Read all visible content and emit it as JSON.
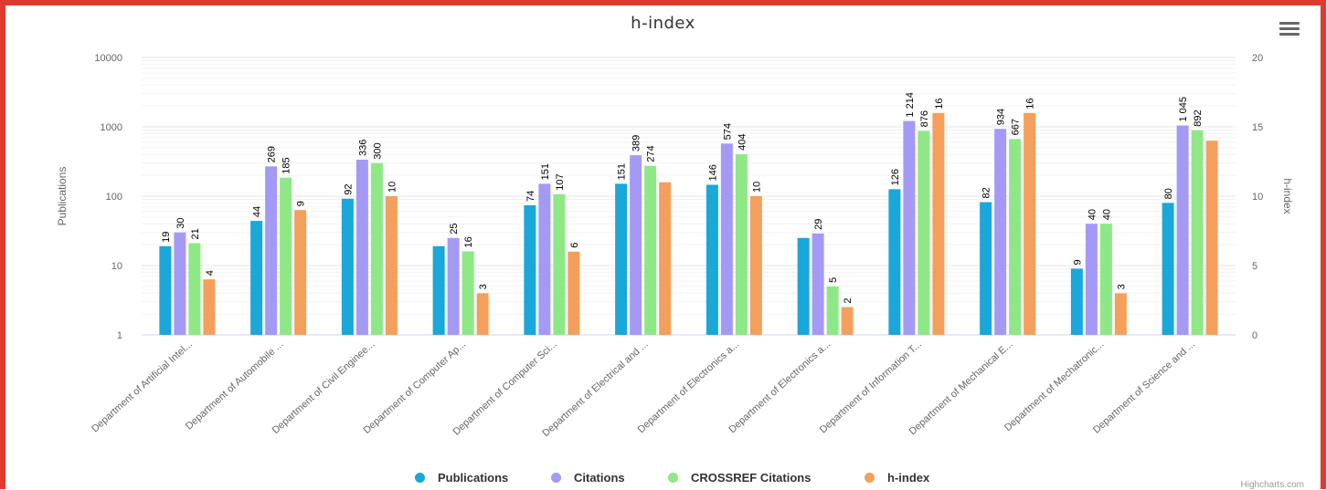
{
  "chart_data": {
    "type": "bar",
    "title": "h-index",
    "ylabel": "Publications",
    "ylabel_right": "h-index",
    "y_scale": "log",
    "ylim": [
      1,
      10000
    ],
    "y_ticks": [
      "1",
      "10",
      "100",
      "1000",
      "10000"
    ],
    "ylim_right": [
      0,
      20
    ],
    "y_ticks_right": [
      "0",
      "5",
      "10",
      "15",
      "20"
    ],
    "grid": true,
    "legend_position": "bottom",
    "categories": [
      "Department of Artificial Intel...",
      "Department of Automobile ...",
      "Department of Civil Enginee...",
      "Department of Computer Ap...",
      "Department of Computer Sci...",
      "Department of Electrical and ...",
      "Department of Electronics a...",
      "Department of Electronics a...",
      "Department of Information T...",
      "Department of Mechanical E...",
      "Department of Mechatronic...",
      "Department of Science and ..."
    ],
    "series": [
      {
        "name": "Publications",
        "axis": "left",
        "color": "#1aa7d9",
        "values": [
          19,
          44,
          92,
          19,
          74,
          151,
          146,
          25,
          126,
          82,
          9,
          80
        ],
        "labels": [
          "19",
          "44",
          "92",
          "",
          "74",
          "151",
          "146",
          "",
          "126",
          "82",
          "9",
          "80"
        ]
      },
      {
        "name": "Citations",
        "axis": "left",
        "color": "#a49af6",
        "values": [
          30,
          269,
          336,
          25,
          151,
          389,
          574,
          29,
          1214,
          934,
          40,
          1045
        ],
        "labels": [
          "30",
          "269",
          "336",
          "25",
          "151",
          "389",
          "574",
          "29",
          "1 214",
          "934",
          "40",
          "1 045"
        ]
      },
      {
        "name": "CROSSREF Citations",
        "axis": "left",
        "color": "#8ee886",
        "values": [
          21,
          185,
          300,
          16,
          107,
          274,
          404,
          5,
          876,
          667,
          40,
          892
        ],
        "labels": [
          "21",
          "185",
          "300",
          "16",
          "107",
          "274",
          "404",
          "5",
          "876",
          "667",
          "40",
          "892"
        ]
      },
      {
        "name": "h-index",
        "axis": "right",
        "color": "#f4a05c",
        "values": [
          4,
          9,
          10,
          3,
          6,
          11,
          10,
          2,
          16,
          16,
          3,
          14
        ],
        "labels": [
          "4",
          "9",
          "10",
          "3",
          "6",
          "",
          "10",
          "2",
          "16",
          "16",
          "3",
          ""
        ]
      }
    ]
  },
  "credits": "Highcharts.com",
  "icons": {
    "menu": "hamburger-menu-icon"
  }
}
